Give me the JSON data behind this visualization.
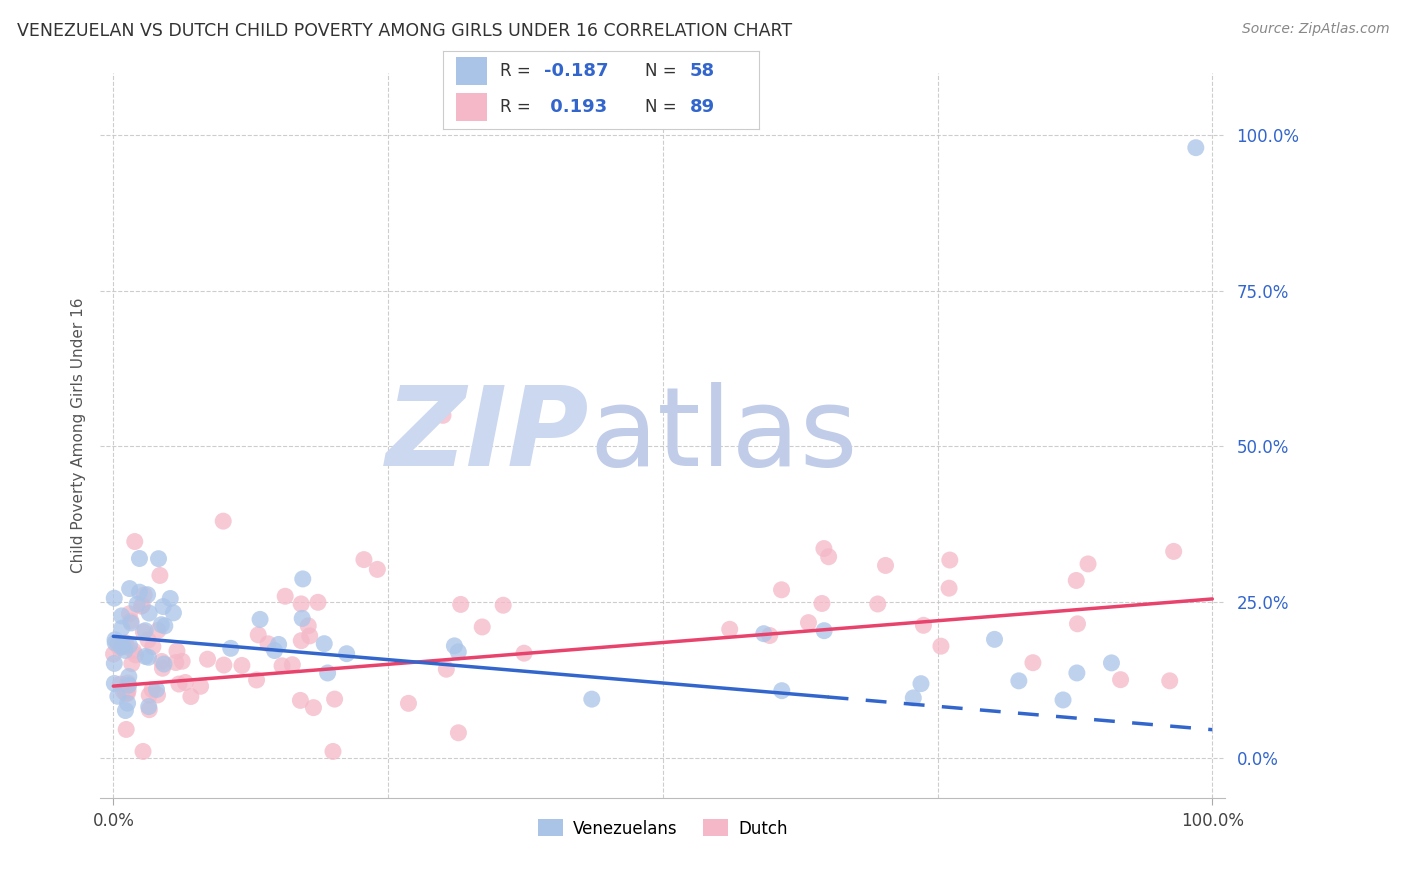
{
  "title": "VENEZUELAN VS DUTCH CHILD POVERTY AMONG GIRLS UNDER 16 CORRELATION CHART",
  "source": "Source: ZipAtlas.com",
  "ylabel": "Child Poverty Among Girls Under 16",
  "legend_venezuelan": {
    "R": -0.187,
    "N": 58,
    "color": "#aac4e8",
    "line_color": "#3366cc"
  },
  "legend_dutch": {
    "R": 0.193,
    "N": 89,
    "color": "#f4b8c8",
    "line_color": "#e8436c"
  },
  "background_color": "#ffffff",
  "grid_color": "#c8c8c8",
  "ven_label": "Venezuelans",
  "dutch_label": "Dutch",
  "ytick_color": "#3366cc",
  "watermark_zip_color": "#ccd8f0",
  "watermark_atlas_color": "#c0cce8"
}
